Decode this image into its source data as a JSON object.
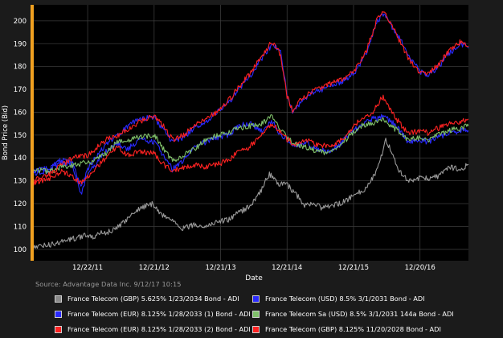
{
  "chart_data": {
    "type": "line",
    "xlabel": "Date",
    "ylabel": "Bond Price (Bid)",
    "ylim": [
      95,
      207
    ],
    "yticks": [
      100,
      110,
      120,
      130,
      140,
      150,
      160,
      170,
      180,
      190,
      200
    ],
    "xlim": [
      "2011-03-01",
      "2017-09-12"
    ],
    "xticks": [
      {
        "date": "2011-12-22",
        "label": "12/22/11"
      },
      {
        "date": "2012-12-21",
        "label": "12/21/12"
      },
      {
        "date": "2013-12-21",
        "label": "12/21/13"
      },
      {
        "date": "2014-12-21",
        "label": "12/21/14"
      },
      {
        "date": "2015-12-21",
        "label": "12/21/15"
      },
      {
        "date": "2016-12-20",
        "label": "12/20/16"
      }
    ],
    "grid": true,
    "source_note": "Source: Advantage Data Inc. 9/12/17 10:15",
    "series": [
      {
        "name": "France Telecom (GBP) 5.625% 1/23/2034 Bond - ADI",
        "color": "#9a9a9a",
        "points": [
          [
            "2011-03-01",
            101
          ],
          [
            "2011-06-01",
            102
          ],
          [
            "2011-09-01",
            104
          ],
          [
            "2011-12-01",
            106
          ],
          [
            "2012-01-15",
            105
          ],
          [
            "2012-03-01",
            107
          ],
          [
            "2012-05-01",
            108
          ],
          [
            "2012-06-15",
            110
          ],
          [
            "2012-08-01",
            114
          ],
          [
            "2012-10-01",
            118
          ],
          [
            "2012-12-15",
            120
          ],
          [
            "2013-02-01",
            115
          ],
          [
            "2013-04-01",
            113
          ],
          [
            "2013-06-01",
            109
          ],
          [
            "2013-08-01",
            111
          ],
          [
            "2013-10-01",
            110
          ],
          [
            "2013-12-01",
            112
          ],
          [
            "2014-02-01",
            113
          ],
          [
            "2014-04-01",
            116
          ],
          [
            "2014-06-01",
            119
          ],
          [
            "2014-08-01",
            126
          ],
          [
            "2014-09-15",
            133
          ],
          [
            "2014-11-01",
            129
          ],
          [
            "2014-12-21",
            128
          ],
          [
            "2015-02-01",
            125
          ],
          [
            "2015-04-01",
            119
          ],
          [
            "2015-05-15",
            120
          ],
          [
            "2015-07-01",
            118
          ],
          [
            "2015-09-01",
            119
          ],
          [
            "2015-11-01",
            121
          ],
          [
            "2016-01-01",
            124
          ],
          [
            "2016-03-01",
            127
          ],
          [
            "2016-05-01",
            135
          ],
          [
            "2016-06-15",
            148
          ],
          [
            "2016-07-15",
            143
          ],
          [
            "2016-09-01",
            134
          ],
          [
            "2016-10-15",
            130
          ],
          [
            "2016-12-20",
            131
          ],
          [
            "2017-02-01",
            131
          ],
          [
            "2017-04-01",
            132
          ],
          [
            "2017-06-01",
            136
          ],
          [
            "2017-08-01",
            135
          ],
          [
            "2017-09-12",
            137
          ]
        ]
      },
      {
        "name": "France Telecom (USD) 8.5% 3/1/2031 Bond - ADI",
        "color": "#2a2aff",
        "points": [
          [
            "2011-03-01",
            134
          ],
          [
            "2011-06-01",
            136
          ],
          [
            "2011-08-01",
            139
          ],
          [
            "2011-10-01",
            138
          ],
          [
            "2011-11-15",
            127
          ],
          [
            "2011-12-22",
            135
          ],
          [
            "2012-02-01",
            140
          ],
          [
            "2012-04-01",
            146
          ],
          [
            "2012-06-01",
            150
          ],
          [
            "2012-08-01",
            154
          ],
          [
            "2012-10-01",
            157
          ],
          [
            "2012-12-21",
            158
          ],
          [
            "2013-02-01",
            153
          ],
          [
            "2013-04-01",
            147
          ],
          [
            "2013-06-01",
            149
          ],
          [
            "2013-08-01",
            153
          ],
          [
            "2013-10-01",
            155
          ],
          [
            "2013-12-01",
            160
          ],
          [
            "2014-02-01",
            164
          ],
          [
            "2014-04-01",
            170
          ],
          [
            "2014-06-01",
            176
          ],
          [
            "2014-08-01",
            183
          ],
          [
            "2014-10-01",
            190
          ],
          [
            "2014-11-15",
            186
          ],
          [
            "2014-12-21",
            168
          ],
          [
            "2015-01-20",
            160
          ],
          [
            "2015-03-01",
            164
          ],
          [
            "2015-05-01",
            168
          ],
          [
            "2015-07-01",
            170
          ],
          [
            "2015-09-01",
            172
          ],
          [
            "2015-11-01",
            174
          ],
          [
            "2016-01-01",
            178
          ],
          [
            "2016-03-01",
            186
          ],
          [
            "2016-05-01",
            200
          ],
          [
            "2016-06-01",
            203
          ],
          [
            "2016-07-15",
            198
          ],
          [
            "2016-09-01",
            192
          ],
          [
            "2016-10-15",
            185
          ],
          [
            "2016-12-20",
            178
          ],
          [
            "2017-02-01",
            176
          ],
          [
            "2017-04-01",
            180
          ],
          [
            "2017-06-01",
            186
          ],
          [
            "2017-08-01",
            190
          ],
          [
            "2017-09-12",
            188
          ]
        ]
      },
      {
        "name": "France Telecom (EUR) 8.125% 1/28/2033 (1) Bond - ADI",
        "color": "#2a2aff",
        "points": [
          [
            "2011-03-01",
            133
          ],
          [
            "2011-06-01",
            135
          ],
          [
            "2011-08-01",
            138
          ],
          [
            "2011-10-01",
            137
          ],
          [
            "2011-11-15",
            124
          ],
          [
            "2011-12-22",
            133
          ],
          [
            "2012-02-01",
            137
          ],
          [
            "2012-04-01",
            143
          ],
          [
            "2012-06-01",
            146
          ],
          [
            "2012-08-01",
            144
          ],
          [
            "2012-10-01",
            148
          ],
          [
            "2012-12-21",
            147
          ],
          [
            "2013-02-01",
            142
          ],
          [
            "2013-04-01",
            135
          ],
          [
            "2013-06-01",
            139
          ],
          [
            "2013-08-01",
            145
          ],
          [
            "2013-10-01",
            147
          ],
          [
            "2013-12-01",
            149
          ],
          [
            "2014-02-01",
            150
          ],
          [
            "2014-04-01",
            154
          ],
          [
            "2014-06-01",
            155
          ],
          [
            "2014-08-01",
            152
          ],
          [
            "2014-10-01",
            156
          ],
          [
            "2014-11-15",
            150
          ],
          [
            "2014-12-21",
            148
          ],
          [
            "2015-02-01",
            145
          ],
          [
            "2015-04-01",
            147
          ],
          [
            "2015-06-01",
            144
          ],
          [
            "2015-08-01",
            143
          ],
          [
            "2015-10-01",
            145
          ],
          [
            "2015-12-01",
            151
          ],
          [
            "2016-02-01",
            154
          ],
          [
            "2016-04-01",
            157
          ],
          [
            "2016-06-01",
            158
          ],
          [
            "2016-07-15",
            156
          ],
          [
            "2016-09-01",
            152
          ],
          [
            "2016-10-15",
            147
          ],
          [
            "2016-12-20",
            148
          ],
          [
            "2017-02-01",
            147
          ],
          [
            "2017-04-01",
            149
          ],
          [
            "2017-06-01",
            151
          ],
          [
            "2017-08-01",
            152
          ],
          [
            "2017-09-12",
            152
          ]
        ]
      },
      {
        "name": "France Telecom Sa (USD) 8.5% 3/1/2031 144a Bond - ADI",
        "color": "#7fbf6a",
        "points": [
          [
            "2011-03-01",
            135
          ],
          [
            "2011-06-01",
            134
          ],
          [
            "2011-08-01",
            136
          ],
          [
            "2011-10-01",
            137
          ],
          [
            "2011-12-22",
            138
          ],
          [
            "2012-02-01",
            139
          ],
          [
            "2012-04-01",
            142
          ],
          [
            "2012-06-01",
            147
          ],
          [
            "2012-08-01",
            148
          ],
          [
            "2012-10-01",
            149
          ],
          [
            "2012-12-21",
            150
          ],
          [
            "2013-02-01",
            145
          ],
          [
            "2013-04-01",
            139
          ],
          [
            "2013-06-01",
            141
          ],
          [
            "2013-08-01",
            144
          ],
          [
            "2013-10-01",
            148
          ],
          [
            "2013-12-01",
            150
          ],
          [
            "2014-02-01",
            151
          ],
          [
            "2014-04-01",
            153
          ],
          [
            "2014-06-01",
            154
          ],
          [
            "2014-08-01",
            155
          ],
          [
            "2014-10-01",
            158
          ],
          [
            "2014-11-15",
            152
          ],
          [
            "2014-12-21",
            149
          ],
          [
            "2015-02-01",
            146
          ],
          [
            "2015-04-01",
            145
          ],
          [
            "2015-06-01",
            143
          ],
          [
            "2015-08-01",
            142
          ],
          [
            "2015-10-01",
            144
          ],
          [
            "2015-12-01",
            150
          ],
          [
            "2016-02-01",
            154
          ],
          [
            "2016-04-01",
            155
          ],
          [
            "2016-06-01",
            157
          ],
          [
            "2016-07-15",
            154
          ],
          [
            "2016-09-01",
            151
          ],
          [
            "2016-10-15",
            148
          ],
          [
            "2016-12-20",
            149
          ],
          [
            "2017-02-01",
            148
          ],
          [
            "2017-04-01",
            150
          ],
          [
            "2017-06-01",
            152
          ],
          [
            "2017-08-01",
            153
          ],
          [
            "2017-09-12",
            154
          ]
        ]
      },
      {
        "name": "France Telecom (EUR) 8.125% 1/28/2033 (2) Bond - ADI",
        "color": "#ff2222",
        "points": [
          [
            "2011-03-01",
            129
          ],
          [
            "2011-06-01",
            131
          ],
          [
            "2011-08-01",
            134
          ],
          [
            "2011-10-01",
            132
          ],
          [
            "2011-11-15",
            129
          ],
          [
            "2011-12-22",
            132
          ],
          [
            "2012-02-01",
            135
          ],
          [
            "2012-04-01",
            140
          ],
          [
            "2012-06-01",
            145
          ],
          [
            "2012-08-01",
            141
          ],
          [
            "2012-10-01",
            143
          ],
          [
            "2012-12-21",
            142
          ],
          [
            "2013-02-01",
            138
          ],
          [
            "2013-04-01",
            134
          ],
          [
            "2013-06-01",
            136
          ],
          [
            "2013-08-01",
            137
          ],
          [
            "2013-10-01",
            136
          ],
          [
            "2013-12-01",
            137
          ],
          [
            "2014-02-01",
            139
          ],
          [
            "2014-04-01",
            143
          ],
          [
            "2014-06-01",
            145
          ],
          [
            "2014-08-01",
            150
          ],
          [
            "2014-10-01",
            155
          ],
          [
            "2014-11-15",
            151
          ],
          [
            "2014-12-21",
            148
          ],
          [
            "2015-02-01",
            146
          ],
          [
            "2015-04-01",
            148
          ],
          [
            "2015-06-01",
            146
          ],
          [
            "2015-08-01",
            145
          ],
          [
            "2015-10-01",
            147
          ],
          [
            "2015-12-01",
            152
          ],
          [
            "2016-02-01",
            157
          ],
          [
            "2016-04-01",
            160
          ],
          [
            "2016-06-01",
            167
          ],
          [
            "2016-07-15",
            160
          ],
          [
            "2016-09-01",
            155
          ],
          [
            "2016-10-15",
            151
          ],
          [
            "2016-12-20",
            152
          ],
          [
            "2017-02-01",
            151
          ],
          [
            "2017-04-01",
            153
          ],
          [
            "2017-06-01",
            155
          ],
          [
            "2017-08-01",
            156
          ],
          [
            "2017-09-12",
            157
          ]
        ]
      },
      {
        "name": "France Telecom (GBP) 8.125% 11/20/2028 Bond - ADI",
        "color": "#ff2222",
        "points": [
          [
            "2011-03-01",
            130
          ],
          [
            "2011-06-01",
            133
          ],
          [
            "2011-08-01",
            137
          ],
          [
            "2011-10-01",
            140
          ],
          [
            "2011-12-22",
            141
          ],
          [
            "2012-02-01",
            144
          ],
          [
            "2012-04-01",
            148
          ],
          [
            "2012-06-01",
            150
          ],
          [
            "2012-08-01",
            152
          ],
          [
            "2012-10-01",
            156
          ],
          [
            "2012-12-21",
            158
          ],
          [
            "2013-02-01",
            155
          ],
          [
            "2013-04-01",
            148
          ],
          [
            "2013-06-01",
            150
          ],
          [
            "2013-08-01",
            154
          ],
          [
            "2013-10-01",
            157
          ],
          [
            "2013-12-01",
            160
          ],
          [
            "2014-02-01",
            165
          ],
          [
            "2014-04-01",
            171
          ],
          [
            "2014-06-01",
            177
          ],
          [
            "2014-08-01",
            184
          ],
          [
            "2014-10-01",
            191
          ],
          [
            "2014-11-15",
            185
          ],
          [
            "2014-12-21",
            167
          ],
          [
            "2015-01-20",
            161
          ],
          [
            "2015-03-01",
            165
          ],
          [
            "2015-05-01",
            169
          ],
          [
            "2015-07-01",
            171
          ],
          [
            "2015-09-01",
            173
          ],
          [
            "2015-11-01",
            175
          ],
          [
            "2016-01-01",
            179
          ],
          [
            "2016-03-01",
            187
          ],
          [
            "2016-05-01",
            201
          ],
          [
            "2016-06-01",
            204
          ],
          [
            "2016-07-15",
            199
          ],
          [
            "2016-09-01",
            191
          ],
          [
            "2016-10-15",
            184
          ],
          [
            "2016-12-20",
            177
          ],
          [
            "2017-02-01",
            177
          ],
          [
            "2017-04-01",
            181
          ],
          [
            "2017-06-01",
            187
          ],
          [
            "2017-08-01",
            191
          ],
          [
            "2017-09-12",
            189
          ]
        ]
      }
    ]
  },
  "legend": [
    {
      "label": "France Telecom (GBP) 5.625% 1/23/2034 Bond - ADI",
      "color": "#8a8a8a"
    },
    {
      "label": "France Telecom (USD) 8.5% 3/1/2031 Bond - ADI",
      "color": "#2a2aff"
    },
    {
      "label": "France Telecom (EUR) 8.125% 1/28/2033 (1) Bond - ADI",
      "color": "#2a2aff"
    },
    {
      "label": "France Telecom Sa (USD) 8.5% 3/1/2031 144a Bond - ADI",
      "color": "#7fbf6a"
    },
    {
      "label": "France Telecom (EUR) 8.125% 1/28/2033 (2) Bond - ADI",
      "color": "#ff2222"
    },
    {
      "label": "France Telecom (GBP) 8.125% 11/20/2028 Bond - ADI",
      "color": "#ff2222"
    }
  ]
}
